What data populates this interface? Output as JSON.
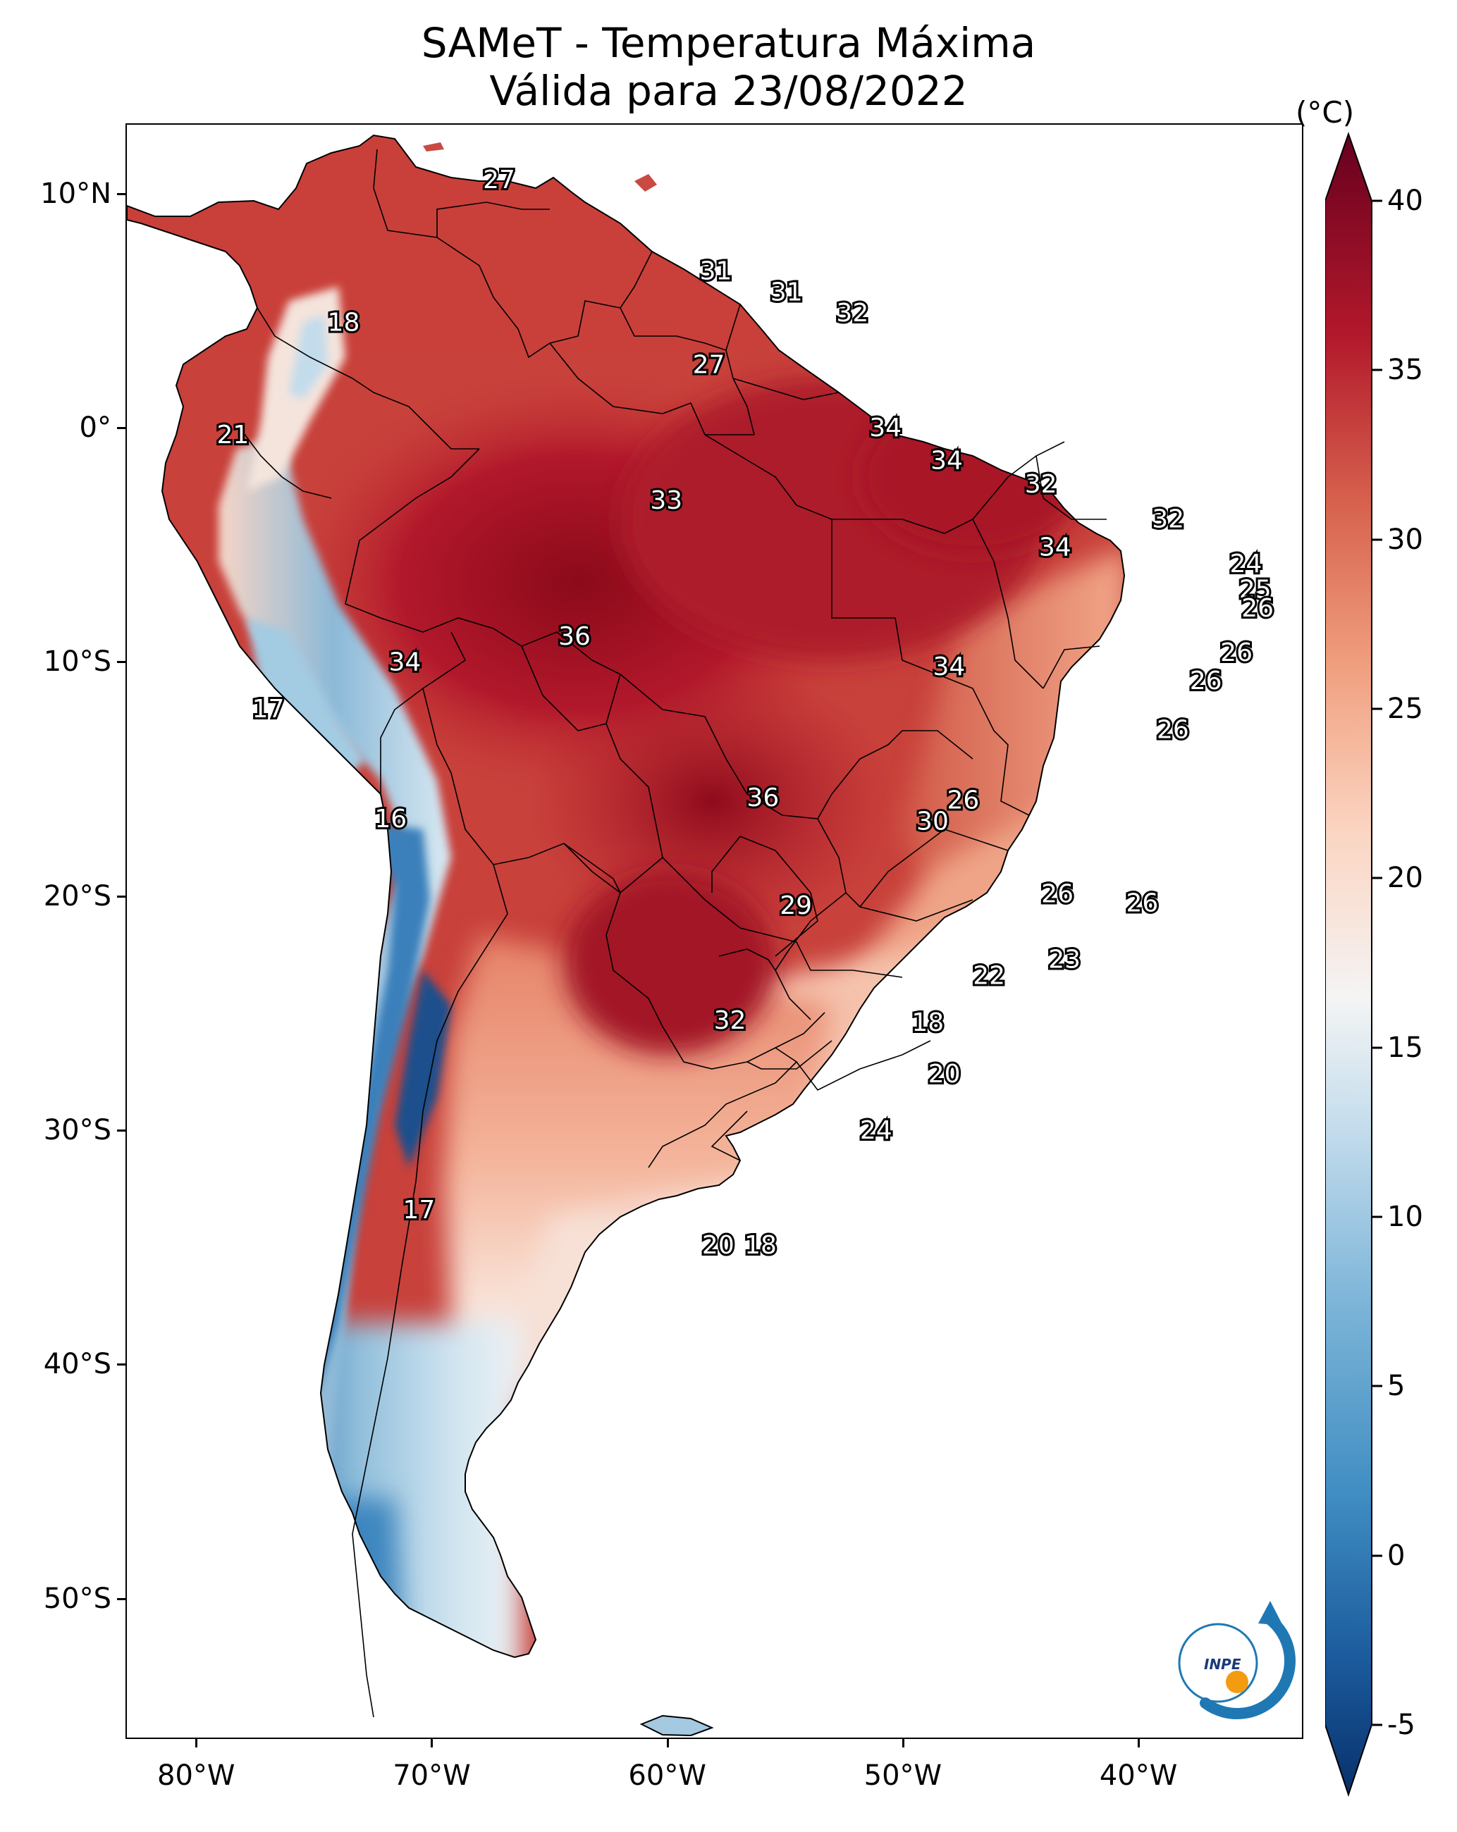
{
  "title": {
    "line1": "SAMeT - Temperatura Máxima",
    "line2": "Válida para 23/08/2022"
  },
  "axes": {
    "lat_ticks": [
      {
        "label": "10°N",
        "lat": 10
      },
      {
        "label": "0°",
        "lat": 0
      },
      {
        "label": "10°S",
        "lat": -10
      },
      {
        "label": "20°S",
        "lat": -20
      },
      {
        "label": "30°S",
        "lat": -30
      },
      {
        "label": "40°S",
        "lat": -40
      },
      {
        "label": "50°S",
        "lat": -50
      }
    ],
    "lon_ticks": [
      {
        "label": "80°W",
        "lon": -80
      },
      {
        "label": "70°W",
        "lon": -70
      },
      {
        "label": "60°W",
        "lon": -60
      },
      {
        "label": "50°W",
        "lon": -50
      },
      {
        "label": "40°W",
        "lon": -40
      }
    ],
    "lon_range": [
      -83,
      -33
    ],
    "lat_range": [
      -56,
      13
    ]
  },
  "colorbar": {
    "unit": "(°C)",
    "ticks": [
      "-5",
      "0",
      "5",
      "10",
      "15",
      "20",
      "25",
      "30",
      "35",
      "40"
    ],
    "range": [
      -5,
      40
    ],
    "colors": [
      "#08306b",
      "#2166ac",
      "#4393c3",
      "#92c5de",
      "#d1e5f0",
      "#f7f7f7",
      "#fddbc7",
      "#f4a582",
      "#d6604d",
      "#b2182b",
      "#67001f"
    ]
  },
  "chart_data": {
    "type": "map",
    "variable": "Temperatura Máxima",
    "date": "23/08/2022",
    "labels": [
      {
        "value": "27",
        "lon": -67.2,
        "lat": 10.6
      },
      {
        "value": "31",
        "lon": -58.0,
        "lat": 6.7
      },
      {
        "value": "31",
        "lon": -55.0,
        "lat": 5.8
      },
      {
        "value": "32",
        "lon": -52.2,
        "lat": 4.9
      },
      {
        "value": "18",
        "lon": -73.8,
        "lat": 4.5
      },
      {
        "value": "27",
        "lon": -58.3,
        "lat": 2.7
      },
      {
        "value": "34",
        "lon": -50.8,
        "lat": 0.0
      },
      {
        "value": "21",
        "lon": -78.5,
        "lat": -0.3
      },
      {
        "value": "34",
        "lon": -48.2,
        "lat": -1.4
      },
      {
        "value": "32",
        "lon": -44.2,
        "lat": -2.4
      },
      {
        "value": "33",
        "lon": -60.1,
        "lat": -3.1
      },
      {
        "value": "32",
        "lon": -38.8,
        "lat": -3.9
      },
      {
        "value": "34",
        "lon": -43.6,
        "lat": -5.1
      },
      {
        "value": "24",
        "lon": -35.5,
        "lat": -5.8
      },
      {
        "value": "25",
        "lon": -35.1,
        "lat": -6.9
      },
      {
        "value": "26",
        "lon": -35.0,
        "lat": -7.7
      },
      {
        "value": "36",
        "lon": -64.0,
        "lat": -8.9
      },
      {
        "value": "26",
        "lon": -35.9,
        "lat": -9.6
      },
      {
        "value": "34",
        "lon": -71.2,
        "lat": -10.0
      },
      {
        "value": "34",
        "lon": -48.1,
        "lat": -10.2
      },
      {
        "value": "26",
        "lon": -37.2,
        "lat": -10.8
      },
      {
        "value": "17",
        "lon": -77.0,
        "lat": -12.0
      },
      {
        "value": "26",
        "lon": -38.6,
        "lat": -12.9
      },
      {
        "value": "36",
        "lon": -56.0,
        "lat": -15.8
      },
      {
        "value": "26",
        "lon": -47.5,
        "lat": -15.9
      },
      {
        "value": "30",
        "lon": -48.8,
        "lat": -16.8
      },
      {
        "value": "16",
        "lon": -71.8,
        "lat": -16.7
      },
      {
        "value": "26",
        "lon": -43.5,
        "lat": -19.9
      },
      {
        "value": "26",
        "lon": -39.9,
        "lat": -20.3
      },
      {
        "value": "29",
        "lon": -54.6,
        "lat": -20.4
      },
      {
        "value": "23",
        "lon": -43.2,
        "lat": -22.7
      },
      {
        "value": "22",
        "lon": -46.4,
        "lat": -23.4
      },
      {
        "value": "32",
        "lon": -57.4,
        "lat": -25.3
      },
      {
        "value": "18",
        "lon": -49.0,
        "lat": -25.4
      },
      {
        "value": "20",
        "lon": -48.3,
        "lat": -27.6
      },
      {
        "value": "24",
        "lon": -51.2,
        "lat": -30.0
      },
      {
        "value": "17",
        "lon": -70.6,
        "lat": -33.4
      },
      {
        "value": "20",
        "lon": -57.9,
        "lat": -34.9
      },
      {
        "value": "18",
        "lon": -56.1,
        "lat": -34.9
      }
    ]
  },
  "logo": {
    "text": "INPE",
    "ring_color": "#1f78b4",
    "dot_color": "#f39c12"
  }
}
